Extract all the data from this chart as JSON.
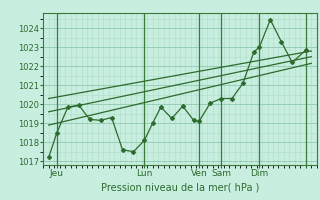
{
  "title": "",
  "xlabel": "Pression niveau de la mer( hPa )",
  "ylabel": "",
  "bg_color": "#c8eee0",
  "plot_bg_color": "#c8eee0",
  "line_color": "#2d6a2d",
  "grid_color_minor": "#b0ddc8",
  "grid_color_major": "#90c8b0",
  "tick_color": "#2d6a2d",
  "vline_color": "#3a7a3a",
  "ylim": [
    1016.8,
    1024.8
  ],
  "xlim": [
    0,
    100
  ],
  "yticks": [
    1017,
    1018,
    1019,
    1020,
    1021,
    1022,
    1023,
    1024
  ],
  "xtick_positions": [
    5,
    37,
    57,
    65,
    79,
    96
  ],
  "xtick_labels": [
    "Jeu",
    "Lun",
    "Ven",
    "Sam",
    "Dim",
    ""
  ],
  "vline_positions": [
    5,
    37,
    57,
    65,
    79,
    96
  ],
  "series1_x": [
    2,
    5,
    9,
    13,
    17,
    21,
    25,
    29,
    33,
    37,
    40,
    43,
    47,
    51,
    55,
    57,
    61,
    65,
    69,
    73,
    77,
    79,
    83,
    87,
    91,
    96
  ],
  "series1_y": [
    1017.2,
    1018.5,
    1019.85,
    1019.95,
    1019.2,
    1019.15,
    1019.3,
    1017.6,
    1017.5,
    1018.1,
    1019.0,
    1019.85,
    1019.25,
    1019.9,
    1019.15,
    1019.1,
    1020.05,
    1020.3,
    1020.3,
    1021.1,
    1022.75,
    1023.0,
    1024.45,
    1023.3,
    1022.2,
    1022.85
  ],
  "trend1_x": [
    2,
    98
  ],
  "trend1_y": [
    1018.9,
    1022.15
  ],
  "trend2_x": [
    2,
    98
  ],
  "trend2_y": [
    1019.6,
    1022.5
  ],
  "trend3_x": [
    2,
    98
  ],
  "trend3_y": [
    1020.3,
    1022.8
  ]
}
